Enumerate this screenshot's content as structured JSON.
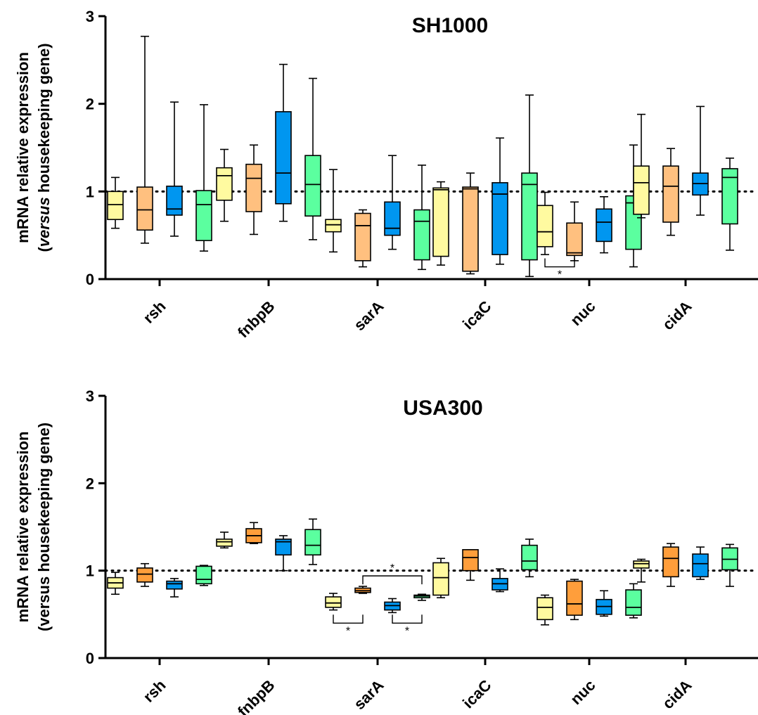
{
  "chart_data": [
    {
      "type": "box",
      "title": "SH1000",
      "ylabel_line1": "mRNA relative expression",
      "ylabel_line2_italic": "versus",
      "ylabel_line2_rest": " housekeeping gene)",
      "ylabel_line2_open": "(",
      "ylim": [
        0,
        3
      ],
      "yticks": [
        "0",
        "1",
        "2",
        "3"
      ],
      "reference_line": 1,
      "categories": [
        "rsh",
        "fnbpB",
        "sarA",
        "icaC",
        "nuc",
        "cidA"
      ],
      "series_colors": [
        "#fffaa0",
        "#ffc07f",
        "#0096f0",
        "#5bff9f"
      ],
      "boxes": [
        [
          {
            "min": 0.58,
            "q1": 0.68,
            "median": 0.85,
            "q3": 1.0,
            "max": 1.16
          },
          {
            "min": 0.41,
            "q1": 0.56,
            "median": 0.79,
            "q3": 1.05,
            "max": 2.77
          },
          {
            "min": 0.49,
            "q1": 0.73,
            "median": 0.8,
            "q3": 1.06,
            "max": 2.02
          },
          {
            "min": 0.32,
            "q1": 0.44,
            "median": 0.85,
            "q3": 1.01,
            "max": 1.99
          }
        ],
        [
          {
            "min": 0.66,
            "q1": 0.9,
            "median": 1.18,
            "q3": 1.27,
            "max": 1.48
          },
          {
            "min": 0.51,
            "q1": 0.77,
            "median": 1.15,
            "q3": 1.31,
            "max": 1.53
          },
          {
            "min": 0.66,
            "q1": 0.86,
            "median": 1.21,
            "q3": 1.91,
            "max": 2.45
          },
          {
            "min": 0.45,
            "q1": 0.72,
            "median": 1.08,
            "q3": 1.41,
            "max": 2.29
          }
        ],
        [
          {
            "min": 0.31,
            "q1": 0.54,
            "median": 0.62,
            "q3": 0.68,
            "max": 1.25
          },
          {
            "min": 0.14,
            "q1": 0.21,
            "median": 0.61,
            "q3": 0.75,
            "max": 0.79
          },
          {
            "min": 0.34,
            "q1": 0.5,
            "median": 0.58,
            "q3": 0.88,
            "max": 1.41
          },
          {
            "min": 0.11,
            "q1": 0.22,
            "median": 0.66,
            "q3": 0.79,
            "max": 1.3
          }
        ],
        [
          {
            "min": 0.16,
            "q1": 0.26,
            "median": 1.02,
            "q3": 1.04,
            "max": 1.11
          },
          {
            "min": 0.06,
            "q1": 0.09,
            "median": 1.03,
            "q3": 1.05,
            "max": 1.21
          },
          {
            "min": 0.17,
            "q1": 0.28,
            "median": 0.97,
            "q3": 1.1,
            "max": 1.61
          },
          {
            "min": 0.03,
            "q1": 0.22,
            "median": 1.08,
            "q3": 1.21,
            "max": 2.1
          }
        ],
        [
          {
            "min": 0.28,
            "q1": 0.37,
            "median": 0.54,
            "q3": 0.84,
            "max": 0.99
          },
          {
            "min": 0.21,
            "q1": 0.27,
            "median": 0.3,
            "q3": 0.64,
            "max": 0.88
          },
          {
            "min": 0.3,
            "q1": 0.43,
            "median": 0.65,
            "q3": 0.8,
            "max": 0.94
          },
          {
            "min": 0.14,
            "q1": 0.34,
            "median": 0.87,
            "q3": 0.95,
            "max": 1.53
          }
        ],
        [
          {
            "min": 0.7,
            "q1": 0.74,
            "median": 1.1,
            "q3": 1.29,
            "max": 1.88
          },
          {
            "min": 0.5,
            "q1": 0.65,
            "median": 1.06,
            "q3": 1.29,
            "max": 1.49
          },
          {
            "min": 0.73,
            "q1": 0.96,
            "median": 1.09,
            "q3": 1.21,
            "max": 1.97
          },
          {
            "min": 0.33,
            "q1": 0.63,
            "median": 1.16,
            "q3": 1.26,
            "max": 1.38
          }
        ]
      ],
      "significance": [
        {
          "category": 4,
          "from": 0,
          "to": 1,
          "label": "*",
          "side": "below",
          "level": 0.14
        }
      ]
    },
    {
      "type": "box",
      "title": "USA300",
      "ylabel_line1": "mRNA relative expression",
      "ylabel_line2": "(versus housekeeping gene)",
      "ylim": [
        0,
        3
      ],
      "yticks": [
        "0",
        "1",
        "2",
        "3"
      ],
      "reference_line": 1,
      "categories": [
        "rsh",
        "fnbpB",
        "sarA",
        "icaC",
        "nuc",
        "cidA"
      ],
      "series_colors": [
        "#fffaa0",
        "#ff9e3b",
        "#0096f0",
        "#5bff9f"
      ],
      "boxes": [
        [
          {
            "min": 0.73,
            "q1": 0.8,
            "median": 0.86,
            "q3": 0.92,
            "max": 0.98
          },
          {
            "min": 0.82,
            "q1": 0.87,
            "median": 0.96,
            "q3": 1.03,
            "max": 1.08
          },
          {
            "min": 0.7,
            "q1": 0.79,
            "median": 0.85,
            "q3": 0.88,
            "max": 0.91
          },
          {
            "min": 0.83,
            "q1": 0.85,
            "median": 0.9,
            "q3": 1.05,
            "max": 1.06
          }
        ],
        [
          {
            "min": 1.26,
            "q1": 1.28,
            "median": 1.33,
            "q3": 1.36,
            "max": 1.44
          },
          {
            "min": 1.31,
            "q1": 1.32,
            "median": 1.4,
            "q3": 1.48,
            "max": 1.55
          },
          {
            "min": 1.0,
            "q1": 1.18,
            "median": 1.33,
            "q3": 1.36,
            "max": 1.4
          },
          {
            "min": 1.07,
            "q1": 1.18,
            "median": 1.29,
            "q3": 1.47,
            "max": 1.59
          }
        ],
        [
          {
            "min": 0.55,
            "q1": 0.58,
            "median": 0.63,
            "q3": 0.7,
            "max": 0.74
          },
          {
            "min": 0.74,
            "q1": 0.75,
            "median": 0.77,
            "q3": 0.8,
            "max": 0.82
          },
          {
            "min": 0.52,
            "q1": 0.55,
            "median": 0.6,
            "q3": 0.64,
            "max": 0.68
          },
          {
            "min": 0.66,
            "q1": 0.69,
            "median": 0.71,
            "q3": 0.72,
            "max": 0.73
          }
        ],
        [
          {
            "min": 0.69,
            "q1": 0.72,
            "median": 0.92,
            "q3": 1.09,
            "max": 1.14
          },
          {
            "min": 0.89,
            "q1": 1.0,
            "median": 1.15,
            "q3": 1.24,
            "max": 1.24
          },
          {
            "min": 0.76,
            "q1": 0.78,
            "median": 0.85,
            "q3": 0.91,
            "max": 1.02
          },
          {
            "min": 0.93,
            "q1": 1.01,
            "median": 1.11,
            "q3": 1.29,
            "max": 1.36
          }
        ],
        [
          {
            "min": 0.38,
            "q1": 0.44,
            "median": 0.58,
            "q3": 0.69,
            "max": 0.72
          },
          {
            "min": 0.44,
            "q1": 0.49,
            "median": 0.62,
            "q3": 0.88,
            "max": 0.9
          },
          {
            "min": 0.48,
            "q1": 0.5,
            "median": 0.59,
            "q3": 0.67,
            "max": 0.77
          },
          {
            "min": 0.46,
            "q1": 0.49,
            "median": 0.58,
            "q3": 0.78,
            "max": 0.85
          }
        ],
        [
          {
            "min": 0.87,
            "q1": 1.03,
            "median": 1.08,
            "q3": 1.11,
            "max": 1.13
          },
          {
            "min": 0.82,
            "q1": 0.93,
            "median": 1.14,
            "q3": 1.27,
            "max": 1.31
          },
          {
            "min": 0.9,
            "q1": 0.93,
            "median": 1.08,
            "q3": 1.19,
            "max": 1.27
          },
          {
            "min": 0.82,
            "q1": 1.01,
            "median": 1.13,
            "q3": 1.26,
            "max": 1.3
          }
        ]
      ],
      "significance": [
        {
          "category": 2,
          "from": 1,
          "to": 3,
          "label": "*",
          "side": "above",
          "level": 0.94
        },
        {
          "category": 2,
          "from": 0,
          "to": 1,
          "label": "*",
          "side": "below",
          "level": 0.4
        },
        {
          "category": 2,
          "from": 2,
          "to": 3,
          "label": "*",
          "side": "below",
          "level": 0.4
        }
      ]
    }
  ]
}
